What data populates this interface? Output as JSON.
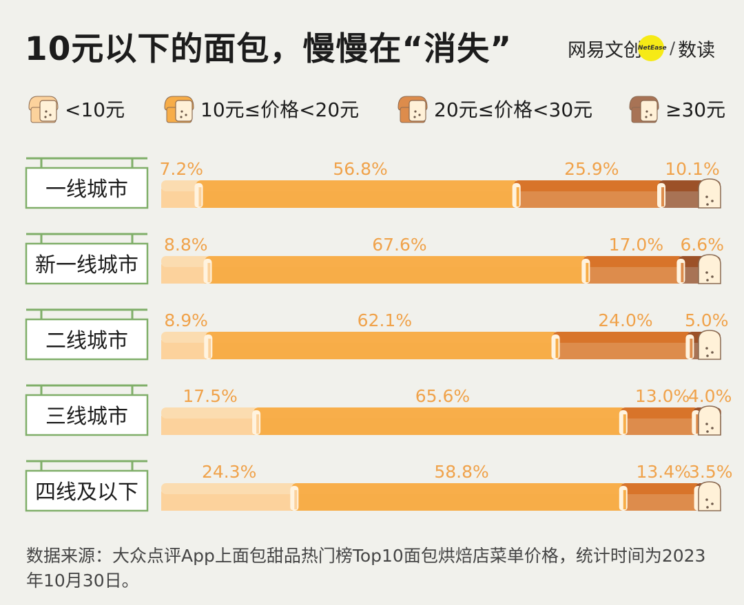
{
  "title": "10元以下的面包，慢慢在“消失”",
  "brand": {
    "name": "网易文创",
    "badge": "NetEase",
    "slash": "/",
    "sub": "数读"
  },
  "legend": [
    {
      "label": "<10元",
      "icon": "bread-icon",
      "color": "#fcd29c"
    },
    {
      "label": "10元≤价格<20元",
      "icon": "bread-icon",
      "color": "#f7ad48"
    },
    {
      "label": "20元≤价格<30元",
      "icon": "bread-icon",
      "color": "#dd8c4c"
    },
    {
      "label": "≥30元",
      "icon": "bread-icon",
      "color": "#a87355"
    }
  ],
  "chart_data": {
    "type": "bar",
    "orientation": "horizontal",
    "stacked": true,
    "categories": [
      "一线城市",
      "新一线城市",
      "二线城市",
      "三线城市",
      "四线及以下"
    ],
    "series": [
      {
        "name": "<10元",
        "values": [
          7.2,
          8.8,
          8.9,
          17.5,
          24.3
        ],
        "labels": [
          "7.2%",
          "8.8%",
          "8.9%",
          "17.5%",
          "24.3%"
        ]
      },
      {
        "name": "10元≤价格<20元",
        "values": [
          56.8,
          67.6,
          62.1,
          65.6,
          58.8
        ],
        "labels": [
          "56.8%",
          "67.6%",
          "62.1%",
          "65.6%",
          "58.8%"
        ]
      },
      {
        "name": "20元≤价格<30元",
        "values": [
          25.9,
          17.0,
          24.0,
          13.0,
          13.4
        ],
        "labels": [
          "25.9%",
          "17.0%",
          "24.0%",
          "13.0%",
          "13.4%"
        ]
      },
      {
        "name": "≥30元",
        "values": [
          10.1,
          6.6,
          5.0,
          4.0,
          3.5
        ],
        "labels": [
          "10.1%",
          "6.6%",
          "5.0%",
          "4.0%",
          "3.5%"
        ]
      }
    ],
    "xlim": [
      0,
      100
    ],
    "colors": {
      "top": [
        "#fbdcb0",
        "#f8ae4a",
        "#d8742a",
        "#9c5128"
      ],
      "body": [
        "#fcd29c",
        "#f7ad48",
        "#dd8c4c",
        "#a87355"
      ],
      "label": "#f0a24a",
      "sign_border": "#7fae68"
    }
  },
  "source": "数据来源：大众点评App上面包甜品热门榜Top10面包烘焙店菜单价格，统计时间为2023年10月30日。"
}
